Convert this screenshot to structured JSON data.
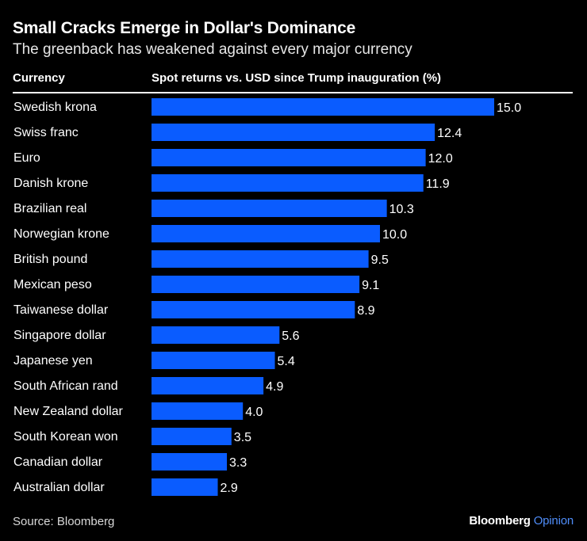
{
  "header": {
    "title": "Small Cracks Emerge in Dollar's Dominance",
    "subtitle": "The greenback has weakened against every major currency"
  },
  "columns": {
    "currency": "Currency",
    "returns": "Spot returns vs. USD since Trump inauguration (%)"
  },
  "chart_data": {
    "type": "bar",
    "orientation": "horizontal",
    "categories": [
      "Swedish krona",
      "Swiss franc",
      "Euro",
      "Danish krone",
      "Brazilian real",
      "Norwegian krone",
      "British pound",
      "Mexican peso",
      "Taiwanese dollar",
      "Singapore dollar",
      "Japanese yen",
      "South African rand",
      "New Zealand dollar",
      "South Korean won",
      "Canadian dollar",
      "Australian dollar"
    ],
    "values": [
      15.0,
      12.4,
      12.0,
      11.9,
      10.3,
      10.0,
      9.5,
      9.1,
      8.9,
      5.6,
      5.4,
      4.9,
      4.0,
      3.5,
      3.3,
      2.9
    ],
    "value_labels": [
      "15.0",
      "12.4",
      "12.0",
      "11.9",
      "10.3",
      "10.0",
      "9.5",
      "9.1",
      "8.9",
      "5.6",
      "5.4",
      "4.9",
      "4.0",
      "3.5",
      "3.3",
      "2.9"
    ],
    "bar_color": "#0a5cff",
    "xlim": [
      0,
      15
    ],
    "grid": false,
    "legend": "none"
  },
  "footer": {
    "source": "Source: Bloomberg",
    "brand_name": "Bloomberg",
    "brand_suffix": "Opinion"
  },
  "colors": {
    "background": "#000000",
    "accent": "#4f8df9"
  }
}
